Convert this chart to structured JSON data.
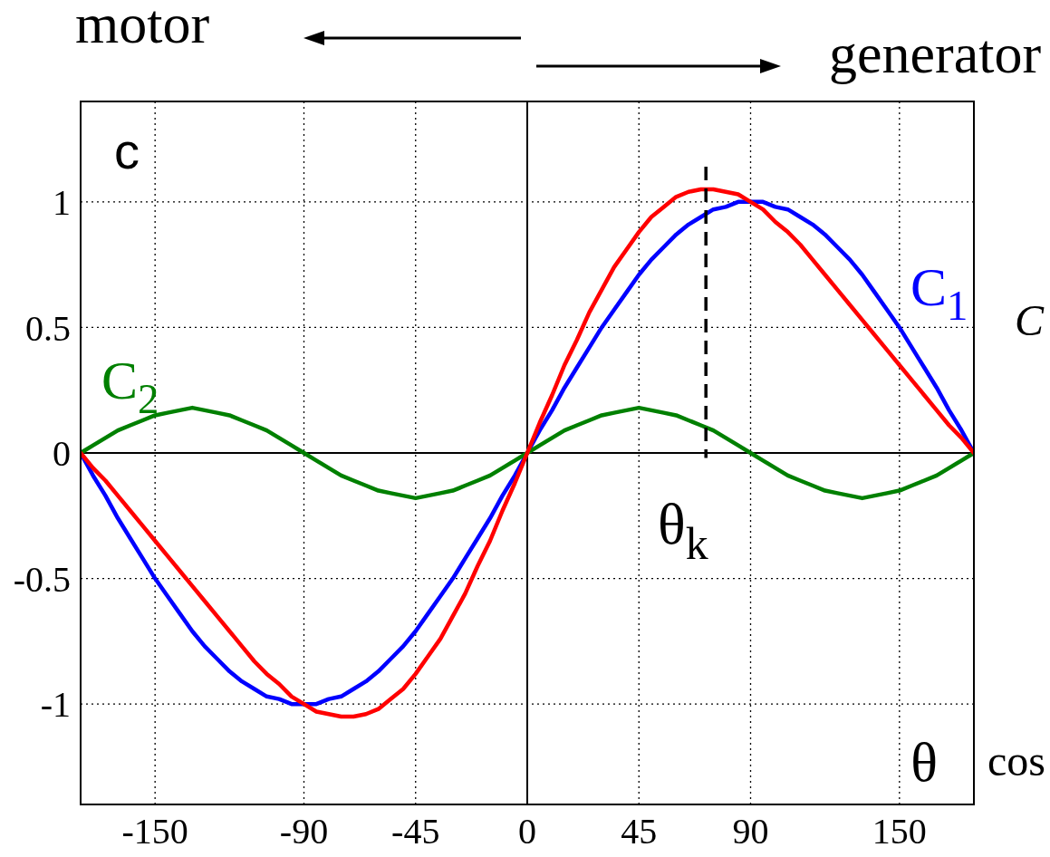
{
  "chart_data": {
    "type": "line",
    "annotations": [
      "motor",
      "generator",
      "θ$_{k}$",
      "C",
      "cos"
    ],
    "xlabel": "θ",
    "ylabel": "c",
    "x": [
      -180,
      -175,
      -170,
      -165,
      -160,
      -155,
      -150,
      -145,
      -140,
      -135,
      -130,
      -125,
      -120,
      -115,
      -110,
      -105,
      -100,
      -95,
      -90,
      -85,
      -80,
      -75,
      -70,
      -65,
      -60,
      -55,
      -50,
      -45,
      -40,
      -35,
      -30,
      -25,
      -20,
      -15,
      -10,
      -5,
      0,
      5,
      10,
      15,
      20,
      25,
      30,
      35,
      40,
      45,
      50,
      55,
      60,
      65,
      70,
      75,
      80,
      85,
      90,
      95,
      100,
      105,
      110,
      115,
      120,
      125,
      130,
      135,
      140,
      145,
      150,
      155,
      160,
      165,
      170,
      175,
      180
    ],
    "series": [
      {
        "name": "C$_{1}$",
        "color": "#0000ff",
        "values": [
          0,
          -0.09,
          -0.17,
          -0.26,
          -0.34,
          -0.42,
          -0.5,
          -0.57,
          -0.64,
          -0.71,
          -0.77,
          -0.82,
          -0.87,
          -0.91,
          -0.94,
          -0.97,
          -0.98,
          -1,
          -1,
          -1,
          -0.98,
          -0.97,
          -0.94,
          -0.91,
          -0.87,
          -0.82,
          -0.77,
          -0.71,
          -0.64,
          -0.57,
          -0.5,
          -0.42,
          -0.34,
          -0.26,
          -0.17,
          -0.09,
          0,
          0.09,
          0.17,
          0.26,
          0.34,
          0.42,
          0.5,
          0.57,
          0.64,
          0.71,
          0.77,
          0.82,
          0.87,
          0.91,
          0.94,
          0.97,
          0.98,
          1,
          1,
          1,
          0.98,
          0.97,
          0.94,
          0.91,
          0.87,
          0.82,
          0.77,
          0.71,
          0.64,
          0.57,
          0.5,
          0.42,
          0.34,
          0.26,
          0.17,
          0.09,
          0
        ]
      },
      {
        "name": "C$_{2}$",
        "color": "#008000",
        "values": [
          0,
          0.03,
          0.06,
          0.09,
          0.11,
          0.13,
          0.15,
          0.16,
          0.17,
          0.18,
          0.17,
          0.16,
          0.15,
          0.13,
          0.11,
          0.09,
          0.06,
          0.03,
          0,
          -0.03,
          -0.06,
          -0.09,
          -0.11,
          -0.13,
          -0.15,
          -0.16,
          -0.17,
          -0.18,
          -0.17,
          -0.16,
          -0.15,
          -0.13,
          -0.11,
          -0.09,
          -0.06,
          -0.03,
          0,
          0.03,
          0.06,
          0.09,
          0.11,
          0.13,
          0.15,
          0.16,
          0.17,
          0.18,
          0.17,
          0.16,
          0.15,
          0.13,
          0.11,
          0.09,
          0.06,
          0.03,
          0,
          -0.03,
          -0.06,
          -0.09,
          -0.11,
          -0.13,
          -0.15,
          -0.16,
          -0.17,
          -0.18,
          -0.17,
          -0.16,
          -0.15,
          -0.13,
          -0.11,
          -0.09,
          -0.06,
          -0.03,
          0
        ]
      },
      {
        "color": "#ff0000",
        "values": [
          0,
          -0.06,
          -0.11,
          -0.17,
          -0.23,
          -0.29,
          -0.35,
          -0.41,
          -0.47,
          -0.53,
          -0.59,
          -0.65,
          -0.71,
          -0.77,
          -0.83,
          -0.88,
          -0.92,
          -0.97,
          -1,
          -1.03,
          -1.04,
          -1.05,
          -1.05,
          -1.04,
          -1.02,
          -0.98,
          -0.94,
          -0.88,
          -0.81,
          -0.74,
          -0.65,
          -0.56,
          -0.45,
          -0.35,
          -0.23,
          -0.12,
          0,
          0.12,
          0.23,
          0.35,
          0.45,
          0.56,
          0.65,
          0.74,
          0.81,
          0.88,
          0.94,
          0.98,
          1.02,
          1.04,
          1.05,
          1.05,
          1.04,
          1.03,
          1,
          0.97,
          0.92,
          0.88,
          0.83,
          0.77,
          0.71,
          0.65,
          0.59,
          0.53,
          0.47,
          0.41,
          0.35,
          0.29,
          0.23,
          0.17,
          0.11,
          0.06,
          0
        ]
      },
      {
        "color": "#000000",
        "line_style": "dashed",
        "x": [
          72,
          72
        ],
        "values": [
          1.14,
          -0.02
        ]
      }
    ],
    "xlim": [
      -180,
      180
    ],
    "ylim": [
      -1.4,
      1.4
    ],
    "xticks": [
      -150,
      -90,
      -45,
      0,
      45,
      90,
      150
    ],
    "yticks": [
      -1,
      -0.5,
      0,
      0.5,
      1
    ],
    "grid": true
  }
}
